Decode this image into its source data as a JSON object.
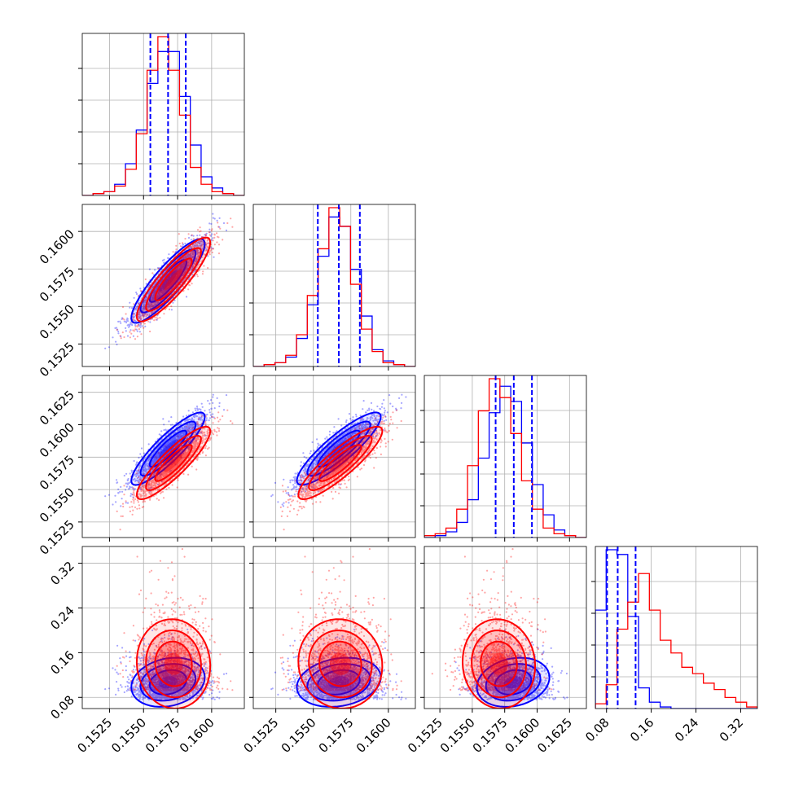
{
  "chart_data": {
    "type": "corner",
    "colors": {
      "blue": "#0000ff",
      "red": "#ff0000",
      "grid": "#b0b0b0",
      "axis": "#000000"
    },
    "series": [
      {
        "color": "#0000ff",
        "params": [
          {
            "mean": 0.1568,
            "sd": 0.00135
          },
          {
            "mean": 0.1567,
            "sd": 0.0014
          },
          {
            "mean": 0.15815,
            "sd": 0.0014
          },
          {
            "mean": 0.107,
            "sd": 0.022,
            "skew": 0.6
          }
        ],
        "quantiles": [
          [
            0.1555,
            0.1568,
            0.1581
          ],
          [
            0.1553,
            0.1567,
            0.1581
          ],
          [
            0.1568,
            0.1582,
            0.1596
          ],
          [
            0.081,
            0.1,
            0.132
          ]
        ],
        "hist": [
          [
            0,
            1,
            2,
            6,
            17,
            35,
            60,
            77,
            77,
            53,
            27,
            10,
            4,
            1,
            0
          ],
          [
            0,
            1,
            2,
            5,
            15,
            33,
            59,
            80,
            75,
            52,
            27,
            9,
            3,
            1,
            0
          ],
          [
            0,
            1,
            3,
            8,
            20,
            42,
            66,
            80,
            72,
            50,
            28,
            12,
            4,
            1,
            0
          ],
          [
            62,
            100,
            97,
            58,
            13,
            4,
            1,
            0,
            0,
            0,
            0,
            0,
            0,
            0,
            0
          ]
        ]
      },
      {
        "color": "#ff0000",
        "params": [
          {
            "mean": 0.1572,
            "sd": 0.00135
          },
          {
            "mean": 0.1568,
            "sd": 0.0014
          },
          {
            "mean": 0.15705,
            "sd": 0.0014
          },
          {
            "mean": 0.14,
            "sd": 0.04,
            "skew": 0.8
          }
        ],
        "quantiles": [
          [
            0.1555,
            0.1568,
            0.1581
          ],
          [
            0.1553,
            0.1567,
            0.1581
          ],
          [
            0.1568,
            0.1582,
            0.1596
          ],
          [
            0.081,
            0.1,
            0.132
          ]
        ],
        "hist": [
          [
            0,
            1,
            2,
            5,
            14,
            33,
            67,
            85,
            67,
            43,
            15,
            6,
            2,
            1,
            0
          ],
          [
            0,
            1,
            2,
            6,
            17,
            38,
            63,
            85,
            75,
            44,
            20,
            8,
            2,
            1,
            0
          ],
          [
            1,
            2,
            5,
            15,
            38,
            67,
            84,
            74,
            55,
            30,
            15,
            5,
            2,
            1,
            0
          ],
          [
            3,
            15,
            50,
            67,
            85,
            62,
            43,
            35,
            26,
            22,
            16,
            12,
            7,
            4,
            1
          ]
        ]
      }
    ],
    "correlations": {
      "0-1": 0.88,
      "0-2": 0.88,
      "1-2": 0.88,
      "0-3": 0.0,
      "1-3": 0.0,
      "2-3": 0.0
    },
    "axes": [
      {
        "range": [
          0.1505,
          0.1624
        ],
        "ticks": [
          "0.1525",
          "0.1550",
          "0.1575",
          "0.1600"
        ]
      },
      {
        "range": [
          0.151,
          0.1618
        ],
        "ticks": [
          "0.1525",
          "0.1550",
          "0.1575",
          "0.1600"
        ]
      },
      {
        "range": [
          0.1513,
          0.1638
        ],
        "ticks": [
          "0.1525",
          "0.1550",
          "0.1575",
          "0.1600",
          "0.1625"
        ]
      },
      {
        "range": [
          0.06,
          0.35
        ],
        "ticks": [
          "0.08",
          "0.16",
          "0.24",
          "0.32"
        ]
      }
    ],
    "grid": true
  }
}
